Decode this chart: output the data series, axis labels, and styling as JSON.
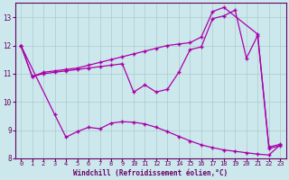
{
  "background_color": "#cce8ec",
  "line_color": "#aa00aa",
  "grid_color": "#aacccc",
  "xlabel": "Windchill (Refroidissement éolien,°C)",
  "xlim": [
    -0.5,
    23.5
  ],
  "ylim": [
    8,
    13.5
  ],
  "yticks": [
    8,
    9,
    10,
    11,
    12,
    13
  ],
  "xticks": [
    0,
    1,
    2,
    3,
    4,
    5,
    6,
    7,
    8,
    9,
    10,
    11,
    12,
    13,
    14,
    15,
    16,
    17,
    18,
    19,
    20,
    21,
    22,
    23
  ],
  "line1_x": [
    0,
    1,
    2,
    3,
    4,
    5,
    6,
    7,
    8,
    9,
    10,
    11,
    12,
    13,
    14,
    15,
    16,
    17,
    18,
    21,
    22,
    23
  ],
  "line1_y": [
    12.0,
    10.9,
    11.05,
    11.1,
    11.15,
    11.2,
    11.3,
    11.4,
    11.5,
    11.6,
    11.7,
    11.8,
    11.9,
    12.0,
    12.05,
    12.1,
    12.3,
    13.2,
    13.35,
    12.4,
    8.4,
    8.5
  ],
  "line2_x": [
    0,
    1,
    2,
    3,
    4,
    5,
    6,
    7,
    8,
    9,
    10,
    11,
    12,
    13,
    14,
    15,
    16,
    17,
    18,
    19,
    20,
    21,
    22,
    23
  ],
  "line2_y": [
    12.0,
    10.9,
    11.0,
    11.05,
    11.1,
    11.15,
    11.2,
    11.25,
    11.3,
    11.35,
    10.35,
    10.6,
    10.35,
    10.45,
    11.05,
    11.85,
    11.95,
    12.95,
    13.05,
    13.25,
    11.55,
    12.35,
    8.35,
    8.45
  ],
  "line3_x": [
    0,
    3,
    4,
    5,
    6,
    7,
    8,
    9,
    10,
    11,
    12,
    13,
    14,
    15,
    16,
    17,
    18,
    19,
    20,
    21,
    22,
    23
  ],
  "line3_y": [
    12.0,
    9.55,
    8.75,
    8.95,
    9.1,
    9.05,
    9.25,
    9.3,
    9.28,
    9.22,
    9.1,
    8.95,
    8.78,
    8.62,
    8.48,
    8.38,
    8.3,
    8.25,
    8.2,
    8.15,
    8.12,
    8.48
  ]
}
